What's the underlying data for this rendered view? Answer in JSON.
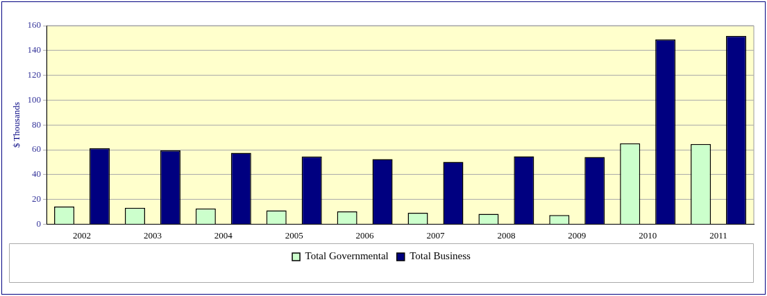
{
  "chart_data": {
    "type": "bar",
    "ylabel": "$ Thousands",
    "categories": [
      "2002",
      "2003",
      "2004",
      "2005",
      "2006",
      "2007",
      "2008",
      "2009",
      "2010",
      "2011"
    ],
    "series": [
      {
        "name": "Total Governmental",
        "color": "#ccffcc",
        "values": [
          14.2,
          13.2,
          12.6,
          11.1,
          10.3,
          9.1,
          8.3,
          7.3,
          65.2,
          64.6
        ]
      },
      {
        "name": "Total Business",
        "color": "#000080",
        "values": [
          61.3,
          59.5,
          57.5,
          54.5,
          52.4,
          50.2,
          54.7,
          54.2,
          148.8,
          151.8
        ]
      }
    ],
    "ylim": [
      0,
      160
    ],
    "yticks": [
      0,
      20,
      40,
      60,
      80,
      100,
      120,
      140,
      160
    ],
    "grid": "y",
    "legend": "bottom"
  }
}
